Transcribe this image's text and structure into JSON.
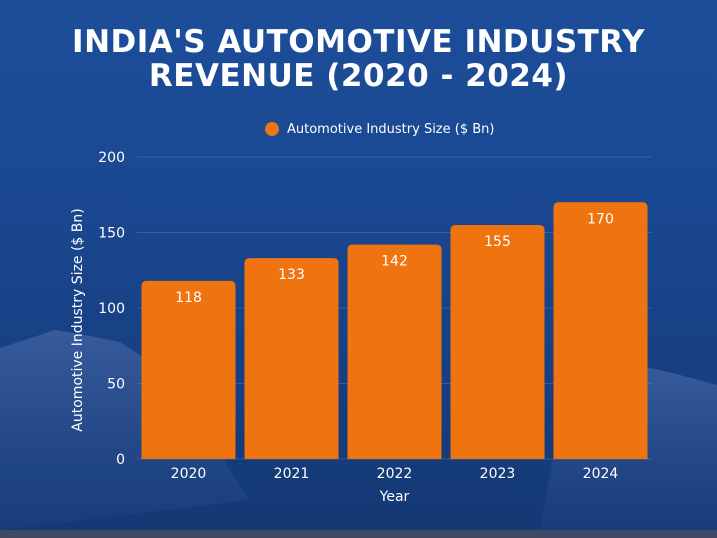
{
  "chart_data": {
    "type": "bar",
    "title_line1": "INDIA'S AUTOMOTIVE INDUSTRY",
    "title_line2": "REVENUE (2020 - 2024)",
    "categories": [
      "2020",
      "2021",
      "2022",
      "2023",
      "2024"
    ],
    "series": [
      {
        "name": "Automotive Industry Size ($ Bn)",
        "values": [
          118,
          133,
          142,
          155,
          170
        ]
      }
    ],
    "xlabel": "Year",
    "ylabel": "Automotive Industry Size ($ Bn)",
    "ylim": [
      0,
      200
    ],
    "yticks": [
      "0",
      "50",
      "100",
      "150",
      "200"
    ],
    "grid": true,
    "legend": "top-center",
    "bar_color": "#ef7410"
  }
}
